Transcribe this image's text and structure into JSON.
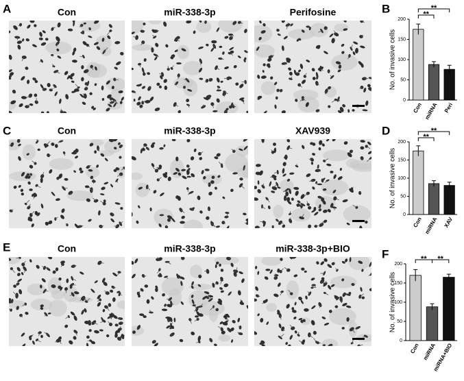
{
  "panels": [
    {
      "letter": "A",
      "images": [
        "Con",
        "miR-338-3p",
        "Perifosine"
      ]
    },
    {
      "letter": "C",
      "images": [
        "Con",
        "miR-338-3p",
        "XAV939"
      ]
    },
    {
      "letter": "E",
      "images": [
        "Con",
        "miR-338-3p",
        "miR-338-3p+BIO"
      ]
    }
  ],
  "chart_data": [
    {
      "letter": "B",
      "type": "bar",
      "ylabel": "No. of invasive cells",
      "categories": [
        "Con",
        "miRNA",
        "Peri"
      ],
      "values": [
        175,
        88,
        76
      ],
      "errors": [
        13,
        7,
        10
      ],
      "colors": [
        "#cccccc",
        "#555555",
        "#111111"
      ],
      "ylim": [
        0,
        200
      ],
      "yticks": [
        0,
        50,
        100,
        150,
        200
      ],
      "annotations": [
        {
          "text": "**",
          "between": [
            0,
            1
          ]
        },
        {
          "text": "**",
          "between": [
            0,
            2
          ]
        }
      ]
    },
    {
      "letter": "D",
      "type": "bar",
      "ylabel": "No. of invasive cells",
      "categories": [
        "Con",
        "miRNA",
        "XAV"
      ],
      "values": [
        175,
        85,
        80
      ],
      "errors": [
        14,
        8,
        9
      ],
      "colors": [
        "#cccccc",
        "#555555",
        "#111111"
      ],
      "ylim": [
        0,
        200
      ],
      "yticks": [
        0,
        50,
        100,
        150,
        200
      ],
      "annotations": [
        {
          "text": "**",
          "between": [
            0,
            1
          ]
        },
        {
          "text": "**",
          "between": [
            0,
            2
          ]
        }
      ]
    },
    {
      "letter": "F",
      "type": "bar",
      "ylabel": "No. of invasive cells",
      "categories": [
        "Con",
        "miRNA",
        "miRNA+BIO"
      ],
      "values": [
        170,
        88,
        165
      ],
      "errors": [
        15,
        8,
        8
      ],
      "colors": [
        "#cccccc",
        "#555555",
        "#111111"
      ],
      "ylim": [
        0,
        200
      ],
      "yticks": [
        0,
        50,
        100,
        150,
        200
      ],
      "annotations": [
        {
          "text": "**",
          "between": [
            0,
            1
          ]
        },
        {
          "text": "**",
          "between": [
            1,
            2
          ]
        }
      ]
    }
  ]
}
